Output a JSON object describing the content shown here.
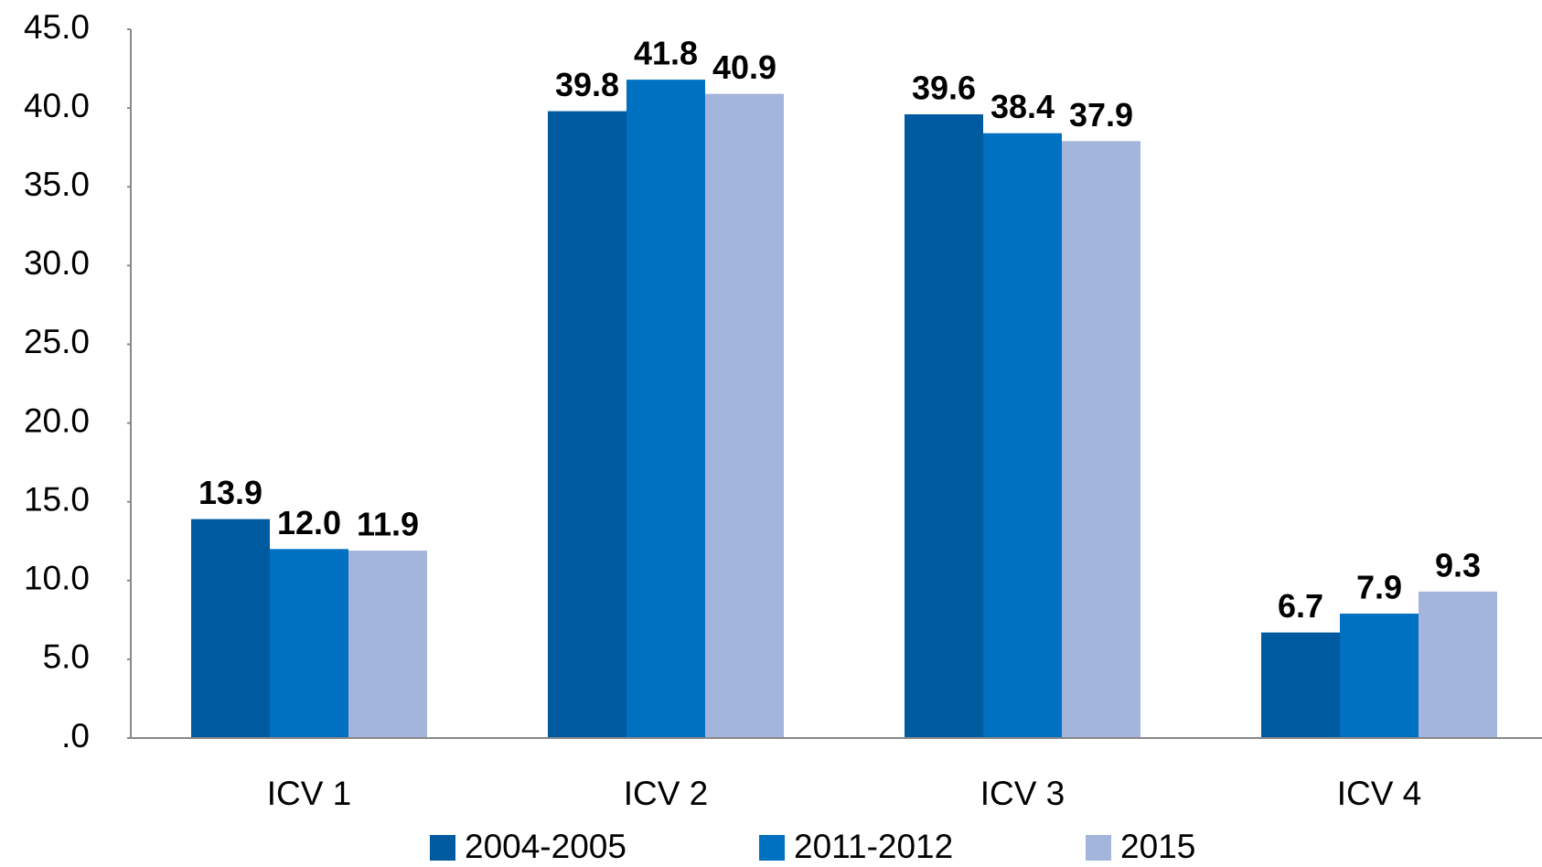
{
  "chart_data": {
    "type": "bar",
    "categories": [
      "ICV 1",
      "ICV 2",
      "ICV 3",
      "ICV 4"
    ],
    "series": [
      {
        "name": "2004-2005",
        "color": "#005aa0",
        "values": [
          13.9,
          39.8,
          39.6,
          6.7
        ],
        "value_labels": [
          "13.9",
          "39.8",
          "39.6",
          "6.7"
        ]
      },
      {
        "name": "2011-2012",
        "color": "#0070c0",
        "values": [
          12,
          41.8,
          38.4,
          7.9
        ],
        "value_labels": [
          "12.0",
          "41.8",
          "38.4",
          "7.9"
        ]
      },
      {
        "name": "2015",
        "color": "#a3b5da",
        "values": [
          11.9,
          40.9,
          37.9,
          9.3
        ],
        "value_labels": [
          "11.9",
          "40.9",
          "37.9",
          "9.3"
        ]
      }
    ],
    "ylim": [
      0,
      45
    ],
    "yticks": [
      {
        "value": 0,
        "label": ".0"
      },
      {
        "value": 5,
        "label": "5.0"
      },
      {
        "value": 10,
        "label": "10.0"
      },
      {
        "value": 15,
        "label": "15.0"
      },
      {
        "value": 20,
        "label": "20.0"
      },
      {
        "value": 25,
        "label": "25.0"
      },
      {
        "value": 30,
        "label": "30.0"
      },
      {
        "value": 35,
        "label": "35.0"
      },
      {
        "value": 40,
        "label": "40.0"
      },
      {
        "value": 45,
        "label": "45.0"
      }
    ],
    "grid": false,
    "legend": "bottom"
  }
}
